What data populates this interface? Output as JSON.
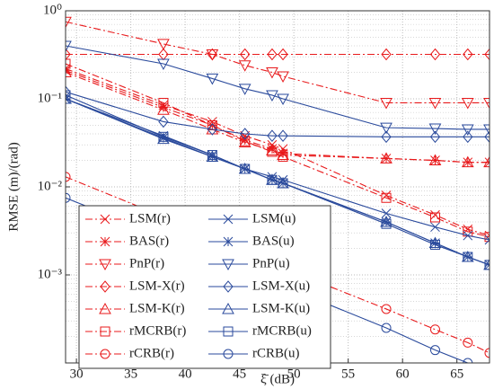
{
  "chart_data": {
    "type": "line",
    "x_label": "ξ̄ (dB)",
    "y_label": "RMSE (m)/(rad)",
    "x": [
      29,
      38,
      42.5,
      45.5,
      48,
      49,
      58.5,
      63,
      66,
      68
    ],
    "xlim": [
      29,
      68
    ],
    "xticks": [
      30,
      35,
      40,
      45,
      50,
      55,
      60,
      65
    ],
    "ylim": [
      0.0001,
      1
    ],
    "log_y": true,
    "grid": true,
    "yticks": [
      {
        "value": 1,
        "label": "10⁰"
      },
      {
        "value": 0.1,
        "label": "10⁻¹"
      },
      {
        "value": 0.01,
        "label": "10⁻²"
      },
      {
        "value": 0.001,
        "label": "10⁻³"
      }
    ],
    "legend": "lower left",
    "series": [
      {
        "name": "LSM(r)",
        "color": "#e8191b",
        "style": "dashdot",
        "marker": "x",
        "values": [
          0.22,
          0.085,
          0.055,
          0.038,
          0.03,
          0.027,
          0.008,
          0.0048,
          0.0033,
          0.0028
        ]
      },
      {
        "name": "BAS(r)",
        "color": "#e8191b",
        "style": "dashdot",
        "marker": "*",
        "values": [
          0.21,
          0.08,
          0.05,
          0.034,
          0.027,
          0.024,
          0.021,
          0.02,
          0.019,
          0.019
        ]
      },
      {
        "name": "PnP(r)",
        "color": "#e8191b",
        "style": "dashdot",
        "marker": "v",
        "values": [
          0.75,
          0.42,
          0.32,
          0.24,
          0.2,
          0.18,
          0.09,
          0.09,
          0.09,
          0.09
        ]
      },
      {
        "name": "LSM-X(r)",
        "color": "#e8191b",
        "style": "dashdot",
        "marker": "d",
        "values": [
          0.32,
          0.32,
          0.32,
          0.32,
          0.32,
          0.32,
          0.32,
          0.32,
          0.32,
          0.32
        ]
      },
      {
        "name": "LSM-K(r)",
        "color": "#e8191b",
        "style": "dashdot",
        "marker": "^",
        "values": [
          0.2,
          0.075,
          0.045,
          0.032,
          0.026,
          0.023,
          0.021,
          0.02,
          0.019,
          0.019
        ]
      },
      {
        "name": "rMCRB(r)",
        "color": "#e8191b",
        "style": "dashdot",
        "marker": "s",
        "values": [
          0.25,
          0.09,
          0.05,
          0.033,
          0.025,
          0.022,
          0.0075,
          0.0045,
          0.0031,
          0.0027
        ]
      },
      {
        "name": "rCRB(r)",
        "color": "#e8191b",
        "style": "dashdot",
        "marker": "o",
        "values": [
          0.013,
          0.0046,
          0.0027,
          0.0018,
          0.0014,
          0.0012,
          0.00041,
          0.00024,
          0.00017,
          0.00013
        ]
      },
      {
        "name": "LSM(u)",
        "color": "#2a4a9c",
        "style": "solid",
        "marker": "x",
        "values": [
          0.1,
          0.038,
          0.023,
          0.016,
          0.013,
          0.012,
          0.005,
          0.0035,
          0.0028,
          0.0025
        ]
      },
      {
        "name": "BAS(u)",
        "color": "#2a4a9c",
        "style": "solid",
        "marker": "*",
        "values": [
          0.1,
          0.036,
          0.022,
          0.016,
          0.012,
          0.011,
          0.004,
          0.0023,
          0.0016,
          0.0013
        ]
      },
      {
        "name": "PnP(u)",
        "color": "#2a4a9c",
        "style": "solid",
        "marker": "v",
        "values": [
          0.4,
          0.25,
          0.17,
          0.13,
          0.11,
          0.1,
          0.047,
          0.046,
          0.045,
          0.045
        ]
      },
      {
        "name": "LSM-X(u)",
        "color": "#2a4a9c",
        "style": "solid",
        "marker": "d",
        "values": [
          0.12,
          0.055,
          0.045,
          0.04,
          0.038,
          0.038,
          0.037,
          0.037,
          0.037,
          0.037
        ]
      },
      {
        "name": "LSM-K(u)",
        "color": "#2a4a9c",
        "style": "solid",
        "marker": "^",
        "values": [
          0.1,
          0.035,
          0.022,
          0.016,
          0.012,
          0.011,
          0.004,
          0.0023,
          0.0016,
          0.0013
        ]
      },
      {
        "name": "rMCRB(u)",
        "color": "#2a4a9c",
        "style": "solid",
        "marker": "s",
        "values": [
          0.11,
          0.037,
          0.023,
          0.016,
          0.012,
          0.011,
          0.0038,
          0.0022,
          0.0016,
          0.0013
        ]
      },
      {
        "name": "rCRB(u)",
        "color": "#2a4a9c",
        "style": "solid",
        "marker": "o",
        "values": [
          0.0075,
          0.0027,
          0.0016,
          0.0011,
          0.00084,
          0.00075,
          0.00025,
          0.00014,
          0.0001,
          8e-05
        ]
      }
    ]
  }
}
